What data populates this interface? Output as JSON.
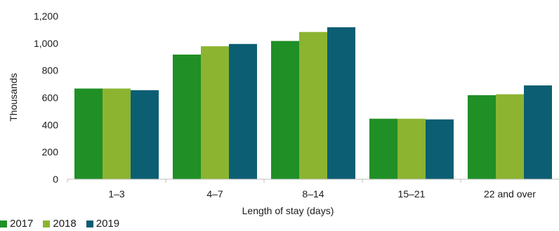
{
  "chart_data": {
    "type": "bar",
    "categories": [
      "1–3",
      "4–7",
      "8–14",
      "15–21",
      "22 and over"
    ],
    "series": [
      {
        "name": "2017",
        "color": "#1f8f26",
        "values": [
          667,
          917,
          1017,
          445,
          618
        ]
      },
      {
        "name": "2018",
        "color": "#8cb431",
        "values": [
          667,
          978,
          1083,
          445,
          625
        ]
      },
      {
        "name": "2019",
        "color": "#0c5e73",
        "values": [
          655,
          995,
          1118,
          440,
          690
        ]
      }
    ],
    "xlabel": "Length of  stay (days)",
    "ylabel": "Thousands",
    "ylim": [
      0,
      1200
    ],
    "yticks": [
      "0",
      "200",
      "400",
      "600",
      "800",
      "1,000",
      "1,200"
    ],
    "grid": false,
    "legend_position": "bottom-left"
  }
}
